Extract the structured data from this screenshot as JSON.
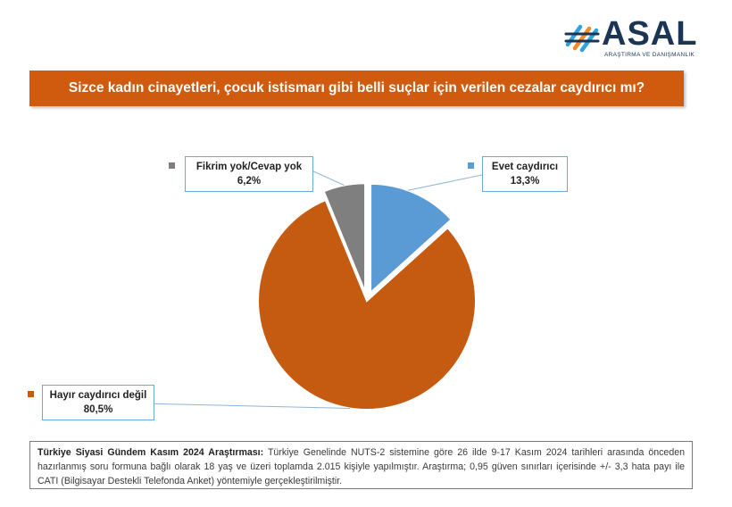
{
  "logo": {
    "name": "ASAL",
    "subtitle": "ARAŞTIRMA VE DANIŞMANLIK"
  },
  "title": "Sizce kadın cinayetleri, çocuk istismarı gibi belli suçlar için verilen cezalar caydırıcı mı?",
  "colors": {
    "banner": "#d05a0e",
    "evet": "#5b9bd5",
    "hayir": "#c55a11",
    "fikrim": "#7f7f7f"
  },
  "chart_data": {
    "type": "pie",
    "title": "Sizce kadın cinayetleri, çocuk istismarı gibi belli suçlar için verilen cezalar caydırıcı mı?",
    "slices": [
      {
        "label": "Evet caydırıcı",
        "value": 13.3,
        "display": "13,3%",
        "color": "#5b9bd5",
        "exploded": true
      },
      {
        "label": "Hayır caydırıcı değil",
        "value": 80.5,
        "display": "80,5%",
        "color": "#c55a11",
        "exploded": false
      },
      {
        "label": "Fikrim yok/Cevap yok",
        "value": 6.2,
        "display": "6,2%",
        "color": "#7f7f7f",
        "exploded": true
      }
    ]
  },
  "footnote": {
    "bold": "Türkiye Siyasi Gündem Kasım 2024 Araştırması:",
    "text": " Türkiye Genelinde NUTS-2 sistemine göre 26 ilde 9-17 Kasım 2024 tarihleri arasında önceden hazırlanmış soru formuna bağlı olarak 18 yaş ve üzeri toplamda 2.015 kişiyle yapılmıştır. Araştırma; 0,95 güven sınırları içerisinde +/- 3,3 hata payı ile CATI (Bilgisayar Destekli Telefonda Anket) yöntemiyle gerçekleştirilmiştir."
  }
}
